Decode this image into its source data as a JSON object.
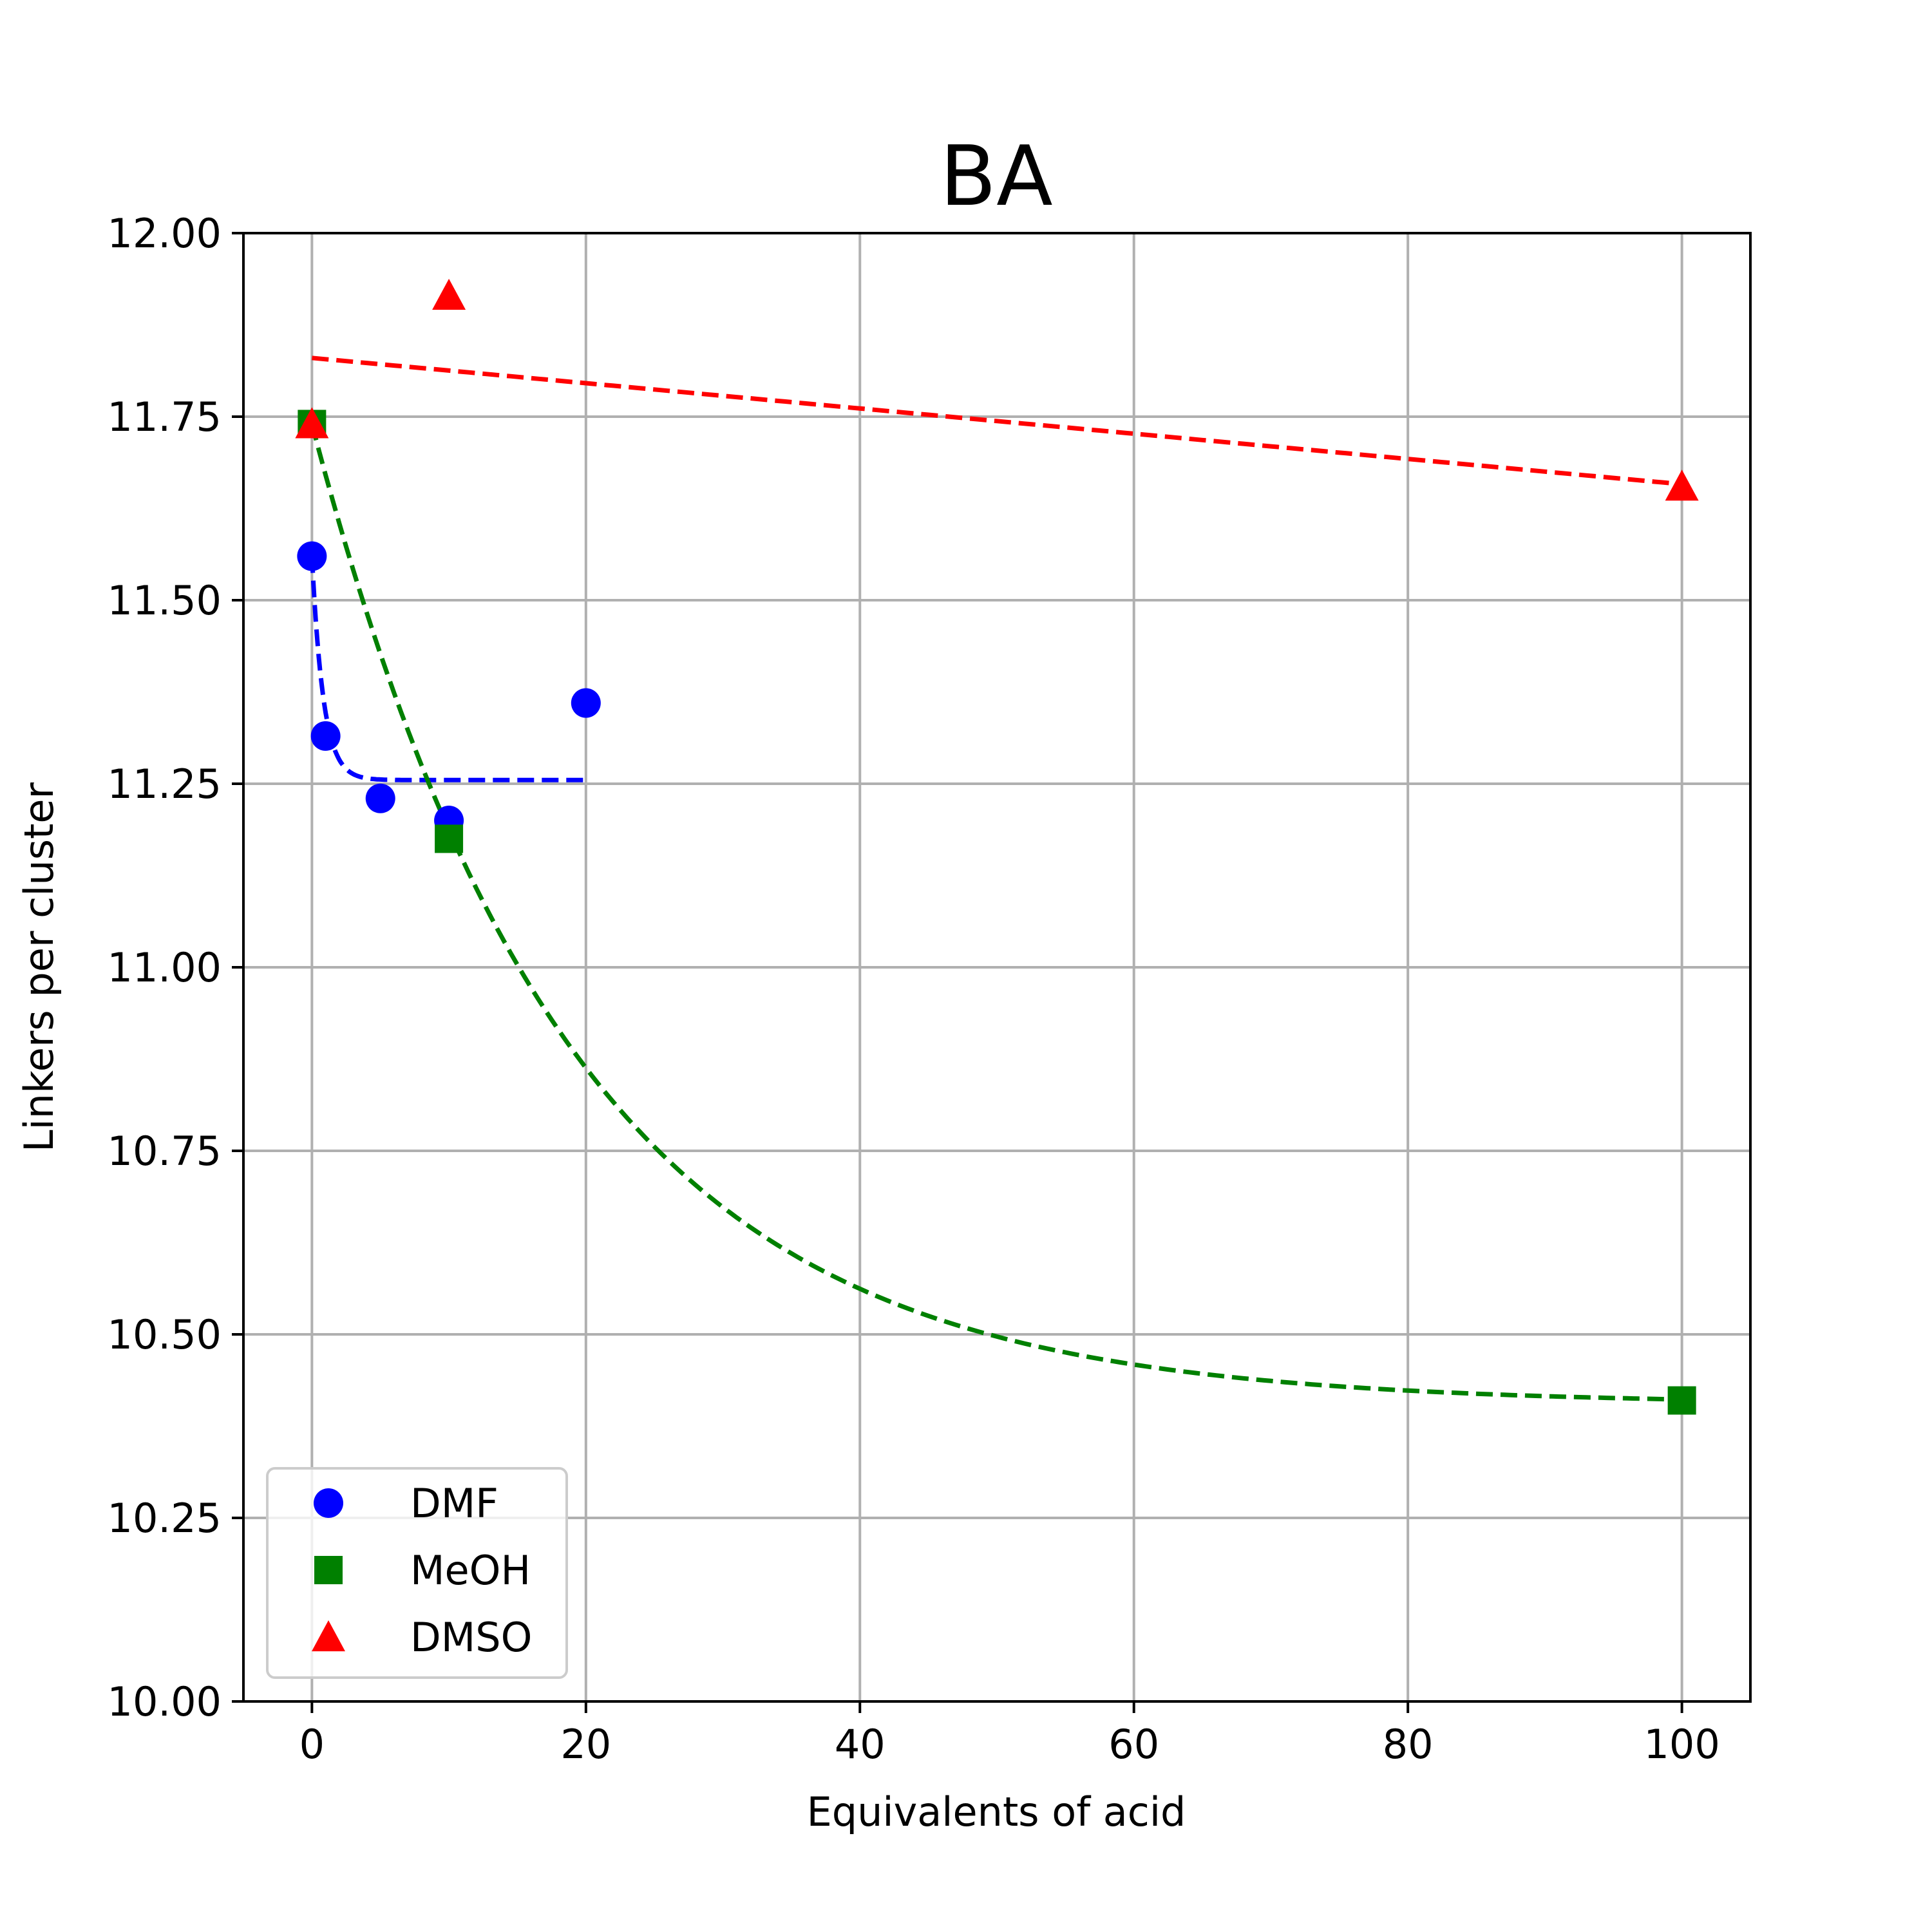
{
  "chart_data": {
    "type": "scatter",
    "title": "BA",
    "xlabel": "Equivalents of acid",
    "ylabel": "Linkers per cluster",
    "xlim": [
      -5,
      105
    ],
    "ylim": [
      10.0,
      12.0
    ],
    "xticks": [
      0,
      20,
      40,
      60,
      80,
      100
    ],
    "yticks": [
      10.0,
      10.25,
      10.5,
      10.75,
      11.0,
      11.25,
      11.5,
      11.75,
      12.0
    ],
    "xtick_labels": [
      "0",
      "20",
      "40",
      "60",
      "80",
      "100"
    ],
    "ytick_labels": [
      "10.00",
      "10.25",
      "10.50",
      "10.75",
      "11.00",
      "11.25",
      "11.50",
      "11.75",
      "12.00"
    ],
    "grid": true,
    "legend_position": "lower-left",
    "series": [
      {
        "name": "DMF",
        "color": "#0000ff",
        "marker": "circle",
        "points": [
          {
            "x": 0,
            "y": 11.56
          },
          {
            "x": 1,
            "y": 11.315
          },
          {
            "x": 5,
            "y": 11.23
          },
          {
            "x": 10,
            "y": 11.2
          },
          {
            "x": 20,
            "y": 11.36
          }
        ],
        "fit": {
          "kind": "exp_decay",
          "x_range": [
            0,
            20
          ],
          "a": 11.255,
          "b": 0.305,
          "k": 1.2
        }
      },
      {
        "name": "MeOH",
        "color": "#008000",
        "marker": "square",
        "points": [
          {
            "x": 0,
            "y": 11.74
          },
          {
            "x": 10,
            "y": 11.175
          },
          {
            "x": 100,
            "y": 10.41
          }
        ],
        "fit": {
          "kind": "exp_decay",
          "x_range": [
            0,
            100
          ],
          "a": 10.405,
          "b": 1.335,
          "k": 0.0535
        }
      },
      {
        "name": "DMSO",
        "color": "#ff0000",
        "marker": "triangle",
        "points": [
          {
            "x": 0,
            "y": 11.74
          },
          {
            "x": 10,
            "y": 11.915
          },
          {
            "x": 100,
            "y": 11.655
          }
        ],
        "fit": {
          "kind": "linear",
          "x_range": [
            0,
            100
          ],
          "intercept": 11.83,
          "slope": -0.00172
        }
      }
    ]
  }
}
